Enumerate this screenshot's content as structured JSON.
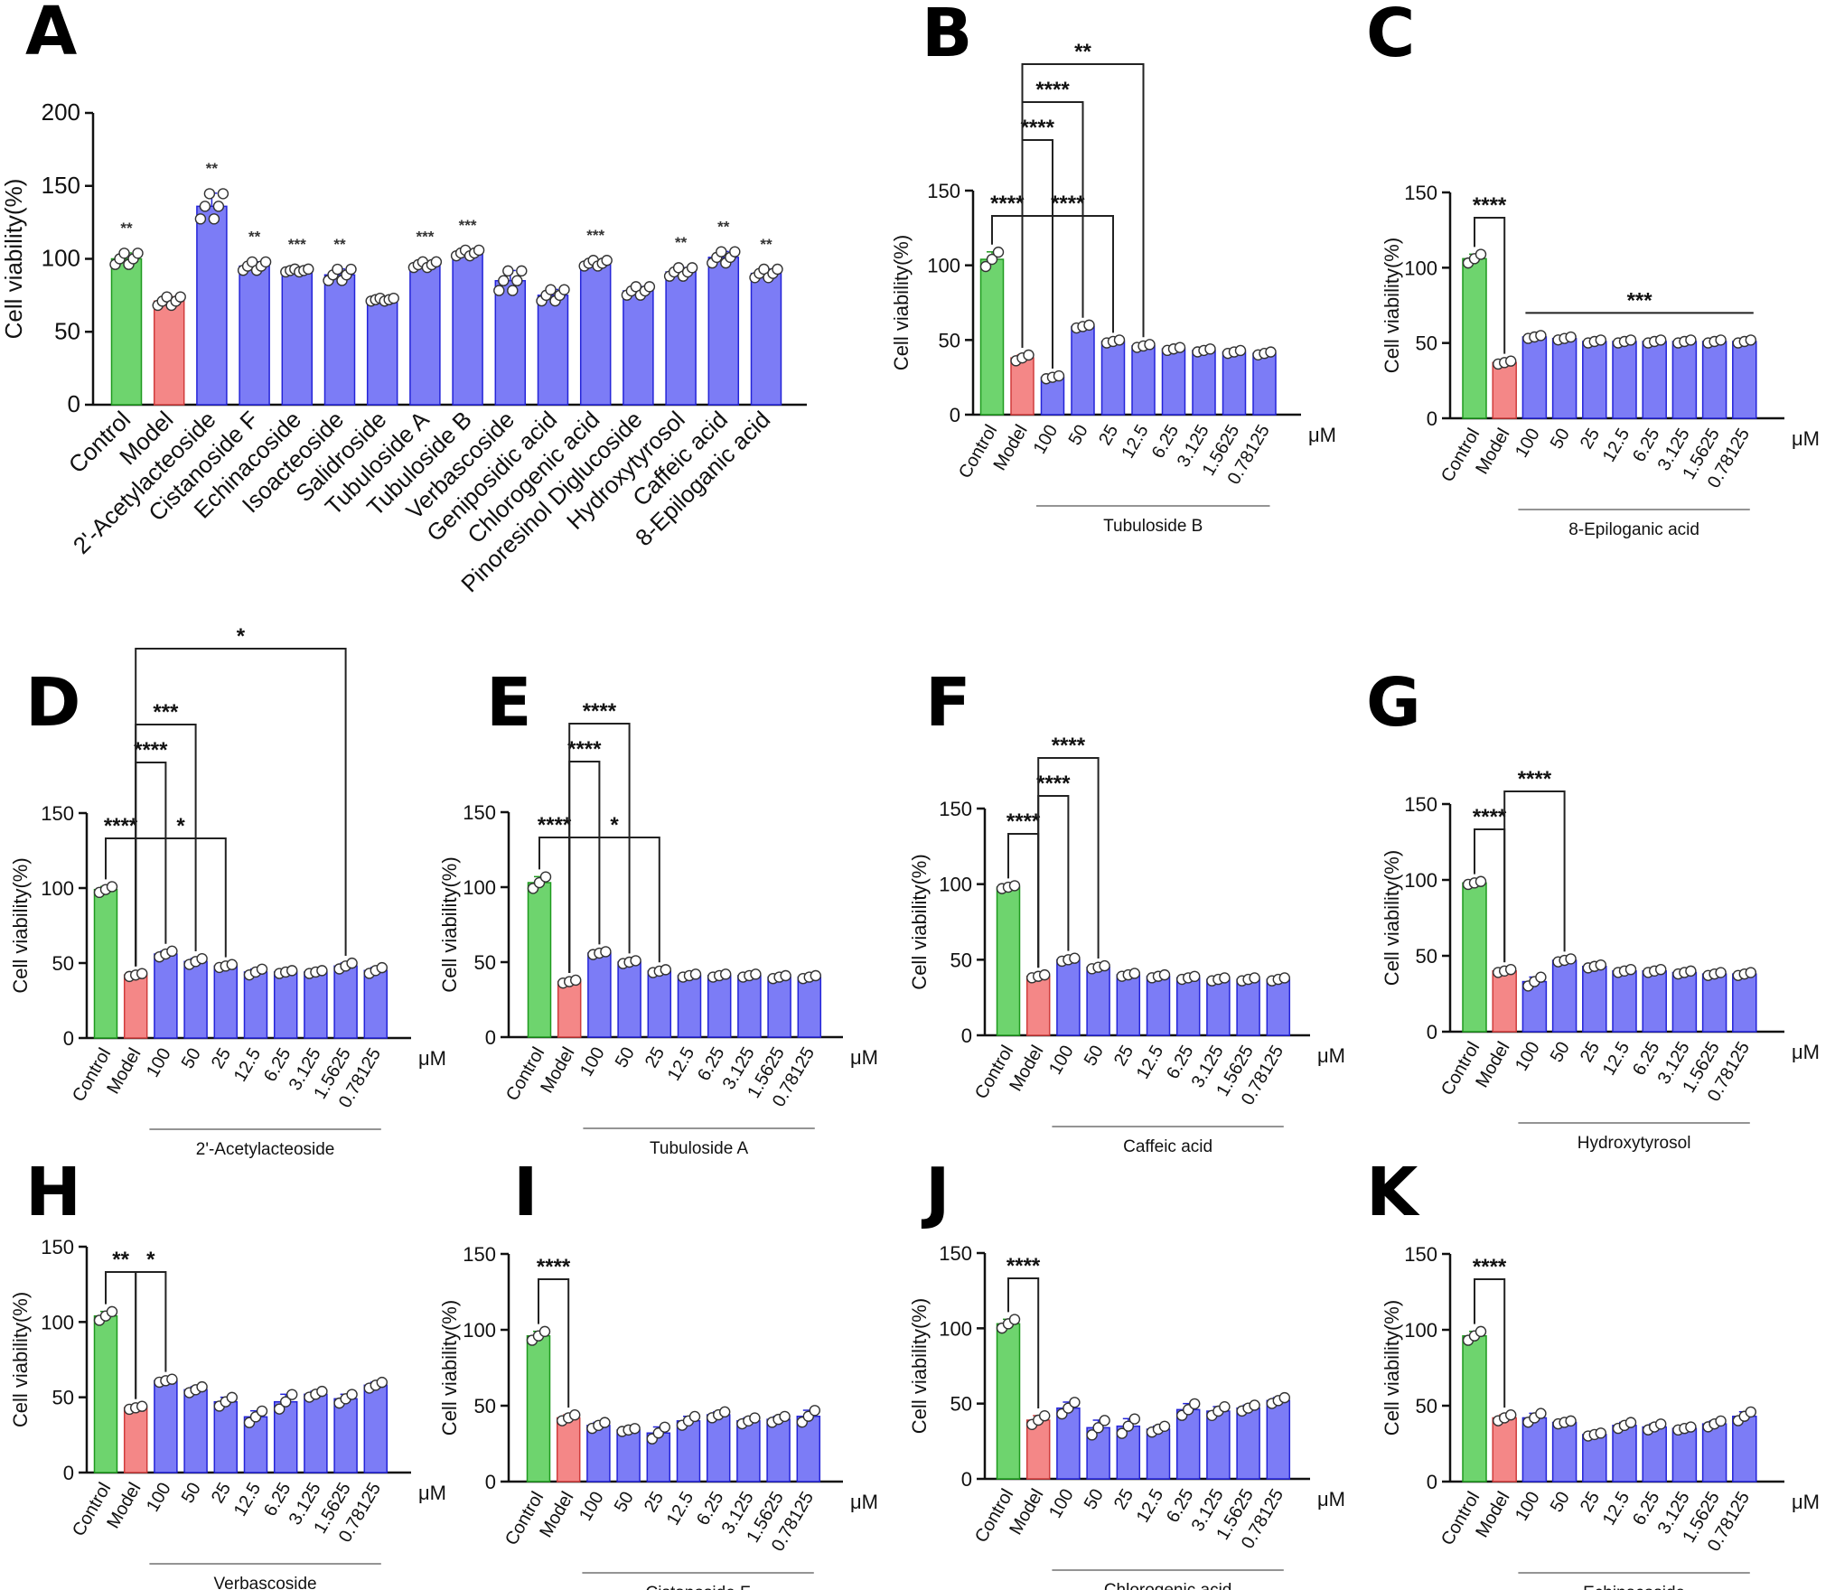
{
  "colors": {
    "control": "#6ed46e",
    "model": "#f48787",
    "treat": "#7c7cf6",
    "treat_edge": "#2424d8",
    "control_edge": "#1f9a1f",
    "model_edge": "#d03c3c",
    "axis": "#111111"
  },
  "chart_data": [
    {
      "panel": "A",
      "type": "bar",
      "ylabel": "Cell viability(%)",
      "ylim": [
        0,
        200
      ],
      "yticks": [
        0,
        50,
        100,
        150,
        200
      ],
      "categories": [
        "Control",
        "Model",
        "2'-Acetylacteoside",
        "Cistanoside F",
        "Echinacoside",
        "Isoacteoside",
        "Salidroside",
        "Tubuloside A",
        "Tubuloside B",
        "Verbascoside",
        "Geniposidic acid",
        "Chlorogenic acid",
        "Pinoresinol Diglucoside",
        "Hydroxytyrosol",
        "Caffeic acid",
        "8-Epiloganic acid"
      ],
      "values": [
        100,
        71,
        136,
        95,
        92,
        89,
        72,
        96,
        104,
        85,
        75,
        97,
        78,
        91,
        101,
        90
      ],
      "sem": [
        4,
        3,
        9,
        3,
        1,
        4,
        1,
        2,
        2,
        7,
        4,
        2,
        3,
        3,
        4,
        3
      ],
      "significance": [
        "**",
        "",
        "**",
        "**",
        "***",
        "**",
        "",
        "***",
        "***",
        "",
        "",
        "***",
        "",
        "**",
        "**",
        "**"
      ]
    },
    {
      "panel": "B",
      "type": "bar",
      "compound": "Tubuloside B",
      "ylabel": "Cell viability(%)",
      "ylim": [
        0,
        150
      ],
      "yticks": [
        0,
        50,
        100,
        150
      ],
      "unit": "μM",
      "categories": [
        "Control",
        "Model",
        "100",
        "50",
        "25",
        "12.5",
        "6.25",
        "3.125",
        "1.5625",
        "0.78125"
      ],
      "values": [
        104,
        38,
        25,
        59,
        49,
        46,
        44,
        43,
        42,
        41
      ],
      "sem": [
        5,
        2,
        1,
        1,
        1,
        1,
        1,
        1,
        1,
        1
      ],
      "comparisons": [
        {
          "from": 0,
          "to": 1,
          "label": "****",
          "level": 1
        },
        {
          "from": 1,
          "to": 2,
          "label": "****",
          "level": 3
        },
        {
          "from": 1,
          "to": 4,
          "label": "****",
          "level": 1
        },
        {
          "from": 1,
          "to": 3,
          "label": "****",
          "level": 4
        },
        {
          "from": 1,
          "to": 5,
          "label": "**",
          "level": 5
        }
      ]
    },
    {
      "panel": "C",
      "type": "bar",
      "compound": "8-Epiloganic acid",
      "ylabel": "Cell viability(%)",
      "ylim": [
        0,
        150
      ],
      "yticks": [
        0,
        50,
        100,
        150
      ],
      "unit": "μM",
      "categories": [
        "Control",
        "Model",
        "100",
        "50",
        "25",
        "12.5",
        "6.25",
        "3.125",
        "1.5625",
        "0.78125"
      ],
      "values": [
        106,
        37,
        54,
        53,
        51,
        51,
        51,
        51,
        51,
        51
      ],
      "sem": [
        3,
        1,
        1,
        1,
        1,
        1,
        1,
        1,
        1,
        1
      ],
      "comparisons": [
        {
          "from": 0,
          "to": 1,
          "label": "****",
          "level": 1
        }
      ],
      "group_line": {
        "from": 2,
        "to": 9,
        "label": "***",
        "value": 70
      }
    },
    {
      "panel": "D",
      "type": "bar",
      "compound": "2'-Acetylacteoside",
      "ylabel": "Cell viability(%)",
      "ylim": [
        0,
        150
      ],
      "yticks": [
        0,
        50,
        100,
        150
      ],
      "unit": "μM",
      "categories": [
        "Control",
        "Model",
        "100",
        "50",
        "25",
        "12.5",
        "6.25",
        "3.125",
        "1.5625",
        "0.78125"
      ],
      "values": [
        99,
        42,
        56,
        51,
        48,
        44,
        44,
        44,
        48,
        45
      ],
      "sem": [
        2,
        1,
        2,
        2,
        1,
        2,
        1,
        1,
        2,
        2
      ],
      "comparisons": [
        {
          "from": 0,
          "to": 1,
          "label": "****",
          "level": 1
        },
        {
          "from": 1,
          "to": 2,
          "label": "****",
          "level": 3
        },
        {
          "from": 1,
          "to": 4,
          "label": "*",
          "level": 1
        },
        {
          "from": 1,
          "to": 3,
          "label": "***",
          "level": 4
        },
        {
          "from": 1,
          "to": 8,
          "label": "*",
          "level": 6
        }
      ]
    },
    {
      "panel": "E",
      "type": "bar",
      "compound": "Tubuloside A",
      "ylabel": "Cell viability(%)",
      "ylim": [
        0,
        150
      ],
      "yticks": [
        0,
        50,
        100,
        150
      ],
      "unit": "μM",
      "categories": [
        "Control",
        "Model",
        "100",
        "50",
        "25",
        "12.5",
        "6.25",
        "3.125",
        "1.5625",
        "0.78125"
      ],
      "values": [
        103,
        37,
        56,
        50,
        44,
        41,
        41,
        41,
        40,
        40
      ],
      "sem": [
        4,
        1,
        1,
        1,
        1,
        1,
        1,
        1,
        1,
        1
      ],
      "comparisons": [
        {
          "from": 0,
          "to": 1,
          "label": "****",
          "level": 1
        },
        {
          "from": 1,
          "to": 2,
          "label": "****",
          "level": 3
        },
        {
          "from": 1,
          "to": 4,
          "label": "*",
          "level": 1
        },
        {
          "from": 1,
          "to": 3,
          "label": "****",
          "level": 4
        }
      ]
    },
    {
      "panel": "F",
      "type": "bar",
      "compound": "Caffeic acid",
      "ylabel": "Cell viability(%)",
      "ylim": [
        0,
        150
      ],
      "yticks": [
        0,
        50,
        100,
        150
      ],
      "unit": "μM",
      "categories": [
        "Control",
        "Model",
        "100",
        "50",
        "25",
        "12.5",
        "6.25",
        "3.125",
        "1.5625",
        "0.78125"
      ],
      "values": [
        98,
        39,
        50,
        45,
        40,
        39,
        38,
        37,
        37,
        37
      ],
      "sem": [
        1,
        1,
        1,
        1,
        1,
        1,
        1,
        1,
        1,
        1
      ],
      "comparisons": [
        {
          "from": 0,
          "to": 1,
          "label": "****",
          "level": 1
        },
        {
          "from": 1,
          "to": 2,
          "label": "****",
          "level": 2
        },
        {
          "from": 1,
          "to": 3,
          "label": "****",
          "level": 3
        }
      ]
    },
    {
      "panel": "G",
      "type": "bar",
      "compound": "Hydroxytyrosol",
      "ylabel": "Cell viability(%)",
      "ylim": [
        0,
        150
      ],
      "yticks": [
        0,
        50,
        100,
        150
      ],
      "unit": "μM",
      "categories": [
        "Control",
        "Model",
        "100",
        "50",
        "25",
        "12.5",
        "6.25",
        "3.125",
        "1.5625",
        "0.78125"
      ],
      "values": [
        98,
        40,
        33,
        47,
        43,
        40,
        40,
        39,
        38,
        38
      ],
      "sem": [
        1,
        1,
        3,
        1,
        1,
        1,
        1,
        1,
        1,
        1
      ],
      "comparisons": [
        {
          "from": 0,
          "to": 1,
          "label": "****",
          "level": 1
        },
        {
          "from": 1,
          "to": 3,
          "label": "****",
          "level": 2
        }
      ]
    },
    {
      "panel": "H",
      "type": "bar",
      "compound": "Verbascoside",
      "ylabel": "Cell viability(%)",
      "ylim": [
        0,
        150
      ],
      "yticks": [
        0,
        50,
        100,
        150
      ],
      "unit": "μM",
      "categories": [
        "Control",
        "Model",
        "100",
        "50",
        "25",
        "12.5",
        "6.25",
        "3.125",
        "1.5625",
        "0.78125"
      ],
      "values": [
        104,
        43,
        61,
        55,
        47,
        37,
        47,
        52,
        49,
        58
      ],
      "sem": [
        3,
        1,
        1,
        2,
        3,
        4,
        5,
        2,
        3,
        2
      ],
      "comparisons": [
        {
          "from": 0,
          "to": 1,
          "label": "**",
          "level": 1
        },
        {
          "from": 1,
          "to": 2,
          "label": "*",
          "level": 1
        }
      ]
    },
    {
      "panel": "I",
      "type": "bar",
      "compound": "Cistanoside F",
      "ylabel": "Cell viability(%)",
      "ylim": [
        0,
        150
      ],
      "yticks": [
        0,
        50,
        100,
        150
      ],
      "unit": "μM",
      "categories": [
        "Control",
        "Model",
        "100",
        "50",
        "25",
        "12.5",
        "6.25",
        "3.125",
        "1.5625",
        "0.78125"
      ],
      "values": [
        96,
        42,
        37,
        34,
        32,
        40,
        44,
        40,
        41,
        43
      ],
      "sem": [
        3,
        2,
        2,
        1,
        4,
        3,
        2,
        2,
        2,
        4
      ],
      "comparisons": [
        {
          "from": 0,
          "to": 1,
          "label": "****",
          "level": 1
        }
      ]
    },
    {
      "panel": "J",
      "type": "bar",
      "compound": "Chlorogenic acid",
      "ylabel": "Cell viability(%)",
      "ylim": [
        0,
        150
      ],
      "yticks": [
        0,
        50,
        100,
        150
      ],
      "unit": "μM",
      "categories": [
        "Control",
        "Model",
        "100",
        "50",
        "25",
        "12.5",
        "6.25",
        "3.125",
        "1.5625",
        "0.78125"
      ],
      "values": [
        103,
        39,
        47,
        34,
        35,
        33,
        46,
        45,
        47,
        52
      ],
      "sem": [
        3,
        3,
        4,
        5,
        5,
        2,
        4,
        3,
        2,
        2
      ],
      "comparisons": [
        {
          "from": 0,
          "to": 1,
          "label": "****",
          "level": 1
        }
      ]
    },
    {
      "panel": "K",
      "type": "bar",
      "compound": "Echinacoside",
      "ylabel": "Cell viability(%)",
      "ylim": [
        0,
        150
      ],
      "yticks": [
        0,
        50,
        100,
        150
      ],
      "unit": "μM",
      "categories": [
        "Control",
        "Model",
        "100",
        "50",
        "25",
        "12.5",
        "6.25",
        "3.125",
        "1.5625",
        "0.78125"
      ],
      "values": [
        96,
        42,
        42,
        39,
        31,
        37,
        36,
        35,
        38,
        43
      ],
      "sem": [
        3,
        2,
        3,
        1,
        1,
        2,
        2,
        1,
        2,
        3
      ],
      "comparisons": [
        {
          "from": 0,
          "to": 1,
          "label": "****",
          "level": 1
        }
      ]
    }
  ]
}
